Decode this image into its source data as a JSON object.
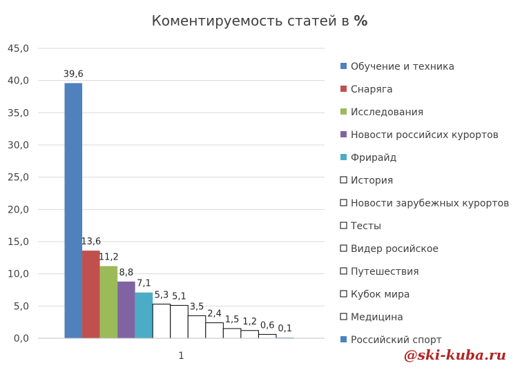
{
  "chart_data": {
    "type": "bar",
    "title": "Коментируемость статей в ",
    "title_suffix": "%",
    "categories": [
      "1"
    ],
    "ylim": [
      0,
      45
    ],
    "ytick_labels": [
      "0,0",
      "5,0",
      "10,0",
      "15,0",
      "20,0",
      "25,0",
      "30,0",
      "35,0",
      "40,0",
      "45,0"
    ],
    "grid": true,
    "legend_position": "right",
    "series": [
      {
        "name": "Обучение и техника",
        "value": 39.6,
        "label": "39,6",
        "color": "#4f81bd",
        "filled": true
      },
      {
        "name": "Снаряга",
        "value": 13.6,
        "label": "13,6",
        "color": "#c0504d",
        "filled": true
      },
      {
        "name": "Исследования",
        "value": 11.2,
        "label": "11,2",
        "color": "#9bbb59",
        "filled": true
      },
      {
        "name": "Новости российсих курортов",
        "value": 8.8,
        "label": "8,8",
        "color": "#8064a2",
        "filled": true
      },
      {
        "name": "Фрирайд",
        "value": 7.1,
        "label": "7,1",
        "color": "#4bacc6",
        "filled": true
      },
      {
        "name": "История",
        "value": 5.3,
        "label": "5,3",
        "color": "#ffffff",
        "filled": false
      },
      {
        "name": "Новости зарубежных курортов",
        "value": 5.1,
        "label": "5,1",
        "color": "#ffffff",
        "filled": false
      },
      {
        "name": "Тесты",
        "value": 3.5,
        "label": "3,5",
        "color": "#ffffff",
        "filled": false
      },
      {
        "name": "Видер росийское",
        "value": 2.4,
        "label": "2,4",
        "color": "#ffffff",
        "filled": false
      },
      {
        "name": "Путешествия",
        "value": 1.5,
        "label": "1,5",
        "color": "#ffffff",
        "filled": false
      },
      {
        "name": "Кубок мира",
        "value": 1.2,
        "label": "1,2",
        "color": "#ffffff",
        "filled": false
      },
      {
        "name": "Медицина",
        "value": 0.6,
        "label": "0,6",
        "color": "#ffffff",
        "filled": false
      },
      {
        "name": "Российский спорт",
        "value": 0.1,
        "label": "0,1",
        "color": "#4f81bd",
        "filled": true
      }
    ]
  },
  "watermark": "@ski-kuba.ru"
}
